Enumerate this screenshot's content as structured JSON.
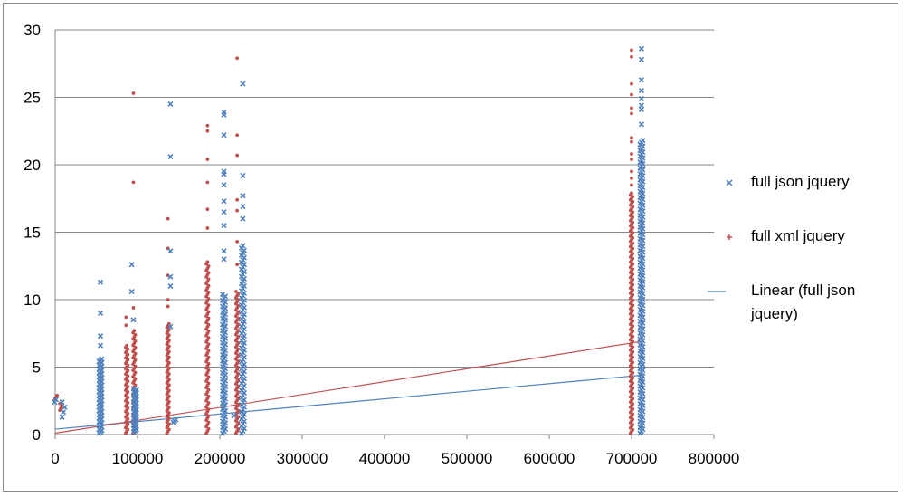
{
  "chart_data": {
    "type": "scatter",
    "title": "",
    "xlabel": "",
    "ylabel": "",
    "xlim": [
      0,
      800000
    ],
    "ylim": [
      0,
      30
    ],
    "x_ticks": [
      "0",
      "100000",
      "200000",
      "300000",
      "400000",
      "500000",
      "600000",
      "700000",
      "800000"
    ],
    "y_ticks": [
      "0",
      "5",
      "10",
      "15",
      "20",
      "25",
      "30"
    ],
    "grid": "horizontal major gridlines",
    "legend_position": "right",
    "series": [
      {
        "name": "full json jquery",
        "marker": "x",
        "color": "#4f81bd",
        "columns": [
          {
            "x": 1000,
            "min": 2.4,
            "max": 2.6,
            "n": 2
          },
          {
            "x": 10000,
            "min": 1.3,
            "max": 2.4,
            "n": 4
          },
          {
            "x": 55000,
            "min": 0.1,
            "max": 5.6,
            "n": 60
          },
          {
            "x": 97000,
            "min": 0.2,
            "max": 3.4,
            "n": 40
          },
          {
            "x": 145000,
            "min": 0.9,
            "max": 1.1,
            "n": 3
          },
          {
            "x": 205000,
            "min": 0.1,
            "max": 10.4,
            "n": 70
          },
          {
            "x": 228000,
            "min": 0.1,
            "max": 14.0,
            "n": 80
          },
          {
            "x": 712000,
            "min": 0.1,
            "max": 21.8,
            "n": 150
          }
        ],
        "points": [
          {
            "x": 55000,
            "y": 11.3
          },
          {
            "x": 55000,
            "y": 9.0
          },
          {
            "x": 55000,
            "y": 7.3
          },
          {
            "x": 55000,
            "y": 6.6
          },
          {
            "x": 93000,
            "y": 12.6
          },
          {
            "x": 93000,
            "y": 10.6
          },
          {
            "x": 95000,
            "y": 8.5
          },
          {
            "x": 140000,
            "y": 24.5
          },
          {
            "x": 140000,
            "y": 20.6
          },
          {
            "x": 140000,
            "y": 13.6
          },
          {
            "x": 140000,
            "y": 11.7
          },
          {
            "x": 140000,
            "y": 11.0
          },
          {
            "x": 140000,
            "y": 8.0
          },
          {
            "x": 205000,
            "y": 23.9
          },
          {
            "x": 205000,
            "y": 23.7
          },
          {
            "x": 205000,
            "y": 22.2
          },
          {
            "x": 205000,
            "y": 19.5
          },
          {
            "x": 205000,
            "y": 19.3
          },
          {
            "x": 205000,
            "y": 18.5
          },
          {
            "x": 205000,
            "y": 17.3
          },
          {
            "x": 205000,
            "y": 16.5
          },
          {
            "x": 205000,
            "y": 15.5
          },
          {
            "x": 205000,
            "y": 13.6
          },
          {
            "x": 205000,
            "y": 13.0
          },
          {
            "x": 217000,
            "y": 1.4
          },
          {
            "x": 228000,
            "y": 26.0
          },
          {
            "x": 228000,
            "y": 19.2
          },
          {
            "x": 228000,
            "y": 17.7
          },
          {
            "x": 228000,
            "y": 16.9
          },
          {
            "x": 228000,
            "y": 16.0
          },
          {
            "x": 712000,
            "y": 28.6
          },
          {
            "x": 712000,
            "y": 27.8
          },
          {
            "x": 712000,
            "y": 26.3
          },
          {
            "x": 712000,
            "y": 25.5
          },
          {
            "x": 712000,
            "y": 24.9
          },
          {
            "x": 712000,
            "y": 24.4
          },
          {
            "x": 712000,
            "y": 24.1
          },
          {
            "x": 712000,
            "y": 23.0
          }
        ]
      },
      {
        "name": "full xml jquery",
        "marker": "+",
        "color": "#c0504d",
        "columns": [
          {
            "x": 1000,
            "min": 2.6,
            "max": 2.9,
            "n": 3
          },
          {
            "x": 7000,
            "min": 1.8,
            "max": 2.3,
            "n": 4
          },
          {
            "x": 87000,
            "min": 0.1,
            "max": 6.6,
            "n": 50
          },
          {
            "x": 96000,
            "min": 0.1,
            "max": 7.7,
            "n": 50
          },
          {
            "x": 137000,
            "min": 0.1,
            "max": 8.2,
            "n": 60
          },
          {
            "x": 185000,
            "min": 0.1,
            "max": 12.8,
            "n": 80
          },
          {
            "x": 221000,
            "min": 0.1,
            "max": 10.6,
            "n": 70
          },
          {
            "x": 700000,
            "min": 0.1,
            "max": 17.9,
            "n": 140
          }
        ],
        "points": [
          {
            "x": 86000,
            "y": 8.7
          },
          {
            "x": 86000,
            "y": 8.1
          },
          {
            "x": 95000,
            "y": 25.3
          },
          {
            "x": 95000,
            "y": 18.7
          },
          {
            "x": 95000,
            "y": 9.4
          },
          {
            "x": 137000,
            "y": 16.0
          },
          {
            "x": 137000,
            "y": 13.8
          },
          {
            "x": 137000,
            "y": 11.8
          },
          {
            "x": 137000,
            "y": 10.0
          },
          {
            "x": 137000,
            "y": 9.5
          },
          {
            "x": 185000,
            "y": 22.9
          },
          {
            "x": 185000,
            "y": 22.5
          },
          {
            "x": 185000,
            "y": 20.4
          },
          {
            "x": 185000,
            "y": 18.7
          },
          {
            "x": 185000,
            "y": 16.7
          },
          {
            "x": 185000,
            "y": 15.3
          },
          {
            "x": 221000,
            "y": 27.9
          },
          {
            "x": 221000,
            "y": 22.2
          },
          {
            "x": 221000,
            "y": 20.7
          },
          {
            "x": 221000,
            "y": 17.4
          },
          {
            "x": 221000,
            "y": 16.6
          },
          {
            "x": 221000,
            "y": 14.3
          },
          {
            "x": 221000,
            "y": 12.6
          },
          {
            "x": 700000,
            "y": 28.5
          },
          {
            "x": 700000,
            "y": 28.0
          },
          {
            "x": 700000,
            "y": 26.0
          },
          {
            "x": 700000,
            "y": 25.2
          },
          {
            "x": 700000,
            "y": 24.2
          },
          {
            "x": 700000,
            "y": 23.8
          },
          {
            "x": 700000,
            "y": 22.0
          },
          {
            "x": 700000,
            "y": 21.7
          },
          {
            "x": 700000,
            "y": 20.8
          },
          {
            "x": 700000,
            "y": 20.4
          },
          {
            "x": 700000,
            "y": 19.5
          },
          {
            "x": 700000,
            "y": 19.0
          },
          {
            "x": 700000,
            "y": 18.5
          }
        ]
      }
    ],
    "trendlines": [
      {
        "name": "Linear (full json jquery)",
        "color": "#4f81bd",
        "x0": 0,
        "y0": 0.4,
        "x1": 712000,
        "y1": 4.4,
        "in_legend": true
      },
      {
        "color": "#c0504d",
        "x0": 0,
        "y0": 0.1,
        "x1": 712000,
        "y1": 6.9,
        "in_legend": false
      }
    ]
  }
}
